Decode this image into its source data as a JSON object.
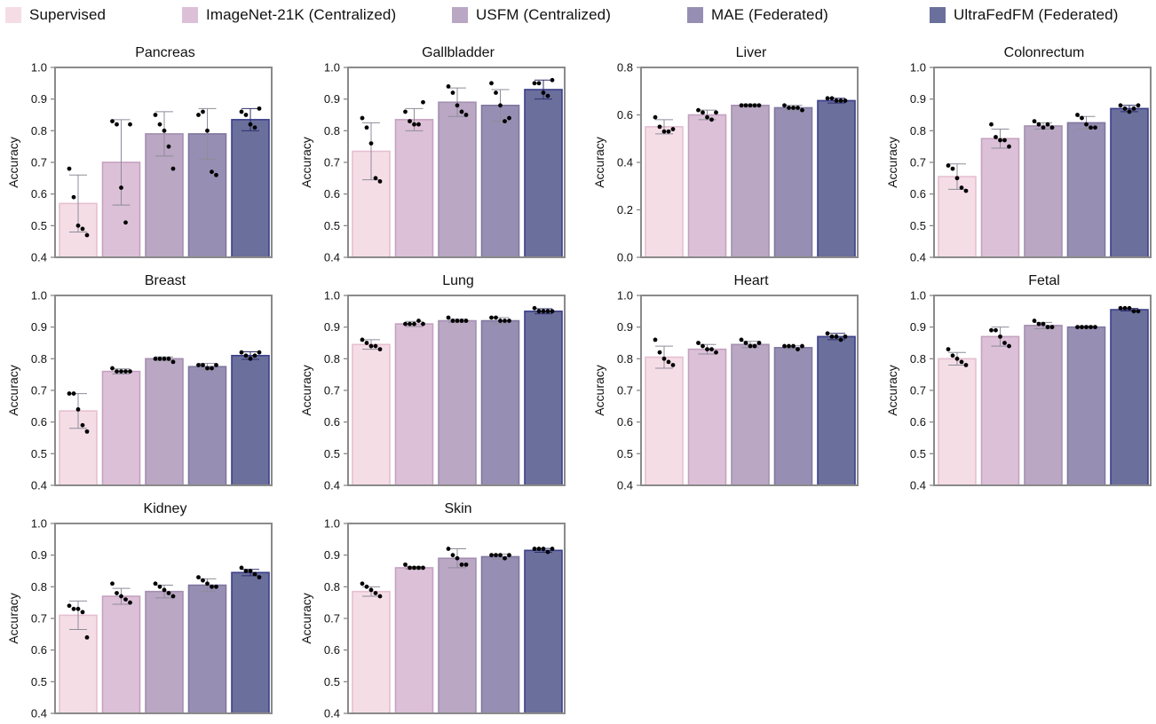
{
  "legend": [
    {
      "label": "Supervised",
      "color": "#f5dde6"
    },
    {
      "label": "ImageNet-21K (Centralized)",
      "color": "#dcc0d8"
    },
    {
      "label": "USFM (Centralized)",
      "color": "#baa7c3"
    },
    {
      "label": "MAE (Federated)",
      "color": "#978fb3"
    },
    {
      "label": "UltraFedFM (Federated)",
      "color": "#6a6f9c"
    }
  ],
  "chart_data": [
    {
      "type": "bar",
      "title": "Pancreas",
      "ylabel": "Accuracy",
      "ylim": [
        0.4,
        1.0
      ],
      "yticks": [
        "0.4",
        "0.5",
        "0.6",
        "0.7",
        "0.8",
        "0.9",
        "1.0"
      ],
      "values": [
        0.57,
        0.7,
        0.79,
        0.79,
        0.835
      ],
      "errors": [
        0.09,
        0.135,
        0.07,
        0.08,
        0.035
      ],
      "points": [
        [
          0.68,
          0.59,
          0.5,
          0.49,
          0.47
        ],
        [
          0.83,
          0.82,
          0.62,
          0.51,
          0.82
        ],
        [
          0.85,
          0.82,
          0.8,
          0.75,
          0.68
        ],
        [
          0.85,
          0.86,
          0.8,
          0.67,
          0.66
        ],
        [
          0.86,
          0.85,
          0.82,
          0.81,
          0.87
        ]
      ]
    },
    {
      "type": "bar",
      "title": "Gallbladder",
      "ylabel": "Accuracy",
      "ylim": [
        0.4,
        1.0
      ],
      "yticks": [
        "0.4",
        "0.5",
        "0.6",
        "0.7",
        "0.8",
        "0.9",
        "1.0"
      ],
      "values": [
        0.735,
        0.835,
        0.89,
        0.88,
        0.93
      ],
      "errors": [
        0.09,
        0.035,
        0.045,
        0.05,
        0.03
      ],
      "points": [
        [
          0.84,
          0.81,
          0.76,
          0.65,
          0.64
        ],
        [
          0.86,
          0.83,
          0.82,
          0.82,
          0.89
        ],
        [
          0.94,
          0.92,
          0.88,
          0.86,
          0.85
        ],
        [
          0.95,
          0.92,
          0.88,
          0.83,
          0.84
        ],
        [
          0.95,
          0.95,
          0.92,
          0.91,
          0.96
        ]
      ]
    },
    {
      "type": "bar",
      "title": "Liver",
      "ylabel": "Accuracy",
      "ylim": [
        0.0,
        0.8
      ],
      "yticks": [
        "0.0",
        "0.2",
        "0.4",
        "0.6",
        "0.8"
      ],
      "values": [
        0.55,
        0.6,
        0.64,
        0.63,
        0.66
      ],
      "errors": [
        0.03,
        0.02,
        0.006,
        0.01,
        0.01
      ],
      "points": [
        [
          0.59,
          0.55,
          0.53,
          0.53,
          0.54
        ],
        [
          0.62,
          0.61,
          0.59,
          0.58,
          0.61
        ],
        [
          0.64,
          0.64,
          0.64,
          0.64,
          0.64
        ],
        [
          0.64,
          0.63,
          0.63,
          0.63,
          0.62
        ],
        [
          0.67,
          0.67,
          0.66,
          0.66,
          0.66
        ]
      ]
    },
    {
      "type": "bar",
      "title": "Colonrectum",
      "ylabel": "Accuracy",
      "ylim": [
        0.4,
        1.0
      ],
      "yticks": [
        "0.4",
        "0.5",
        "0.6",
        "0.7",
        "0.8",
        "0.9",
        "1.0"
      ],
      "values": [
        0.655,
        0.775,
        0.815,
        0.825,
        0.87
      ],
      "errors": [
        0.04,
        0.03,
        0.01,
        0.02,
        0.01
      ],
      "points": [
        [
          0.69,
          0.68,
          0.65,
          0.62,
          0.61
        ],
        [
          0.82,
          0.78,
          0.77,
          0.77,
          0.75
        ],
        [
          0.83,
          0.82,
          0.81,
          0.82,
          0.81
        ],
        [
          0.85,
          0.84,
          0.82,
          0.81,
          0.81
        ],
        [
          0.88,
          0.87,
          0.86,
          0.87,
          0.88
        ]
      ]
    },
    {
      "type": "bar",
      "title": "Breast",
      "ylabel": "Accuracy",
      "ylim": [
        0.4,
        1.0
      ],
      "yticks": [
        "0.4",
        "0.5",
        "0.6",
        "0.7",
        "0.8",
        "0.9",
        "1.0"
      ],
      "values": [
        0.635,
        0.76,
        0.8,
        0.775,
        0.81
      ],
      "errors": [
        0.055,
        0.008,
        0.006,
        0.01,
        0.012
      ],
      "points": [
        [
          0.69,
          0.69,
          0.64,
          0.59,
          0.57
        ],
        [
          0.77,
          0.76,
          0.76,
          0.76,
          0.76
        ],
        [
          0.8,
          0.8,
          0.8,
          0.8,
          0.79
        ],
        [
          0.78,
          0.78,
          0.77,
          0.77,
          0.78
        ],
        [
          0.82,
          0.81,
          0.8,
          0.81,
          0.82
        ]
      ]
    },
    {
      "type": "bar",
      "title": "Lung",
      "ylabel": "Accuracy",
      "ylim": [
        0.4,
        1.0
      ],
      "yticks": [
        "0.4",
        "0.5",
        "0.6",
        "0.7",
        "0.8",
        "0.9",
        "1.0"
      ],
      "values": [
        0.845,
        0.91,
        0.92,
        0.92,
        0.95
      ],
      "errors": [
        0.015,
        0.008,
        0.005,
        0.01,
        0.008
      ],
      "points": [
        [
          0.86,
          0.85,
          0.84,
          0.84,
          0.83
        ],
        [
          0.91,
          0.91,
          0.91,
          0.92,
          0.91
        ],
        [
          0.93,
          0.92,
          0.92,
          0.92,
          0.92
        ],
        [
          0.93,
          0.93,
          0.92,
          0.92,
          0.92
        ],
        [
          0.96,
          0.95,
          0.95,
          0.95,
          0.95
        ]
      ]
    },
    {
      "type": "bar",
      "title": "Heart",
      "ylabel": "Accuracy",
      "ylim": [
        0.4,
        1.0
      ],
      "yticks": [
        "0.4",
        "0.5",
        "0.6",
        "0.7",
        "0.8",
        "0.9",
        "1.0"
      ],
      "values": [
        0.805,
        0.83,
        0.845,
        0.835,
        0.87
      ],
      "errors": [
        0.035,
        0.015,
        0.01,
        0.006,
        0.01
      ],
      "points": [
        [
          0.86,
          0.82,
          0.8,
          0.79,
          0.78
        ],
        [
          0.85,
          0.84,
          0.83,
          0.83,
          0.82
        ],
        [
          0.86,
          0.85,
          0.84,
          0.84,
          0.85
        ],
        [
          0.84,
          0.84,
          0.84,
          0.83,
          0.84
        ],
        [
          0.88,
          0.87,
          0.87,
          0.86,
          0.87
        ]
      ]
    },
    {
      "type": "bar",
      "title": "Fetal",
      "ylabel": "Accuracy",
      "ylim": [
        0.4,
        1.0
      ],
      "yticks": [
        "0.4",
        "0.5",
        "0.6",
        "0.7",
        "0.8",
        "0.9",
        "1.0"
      ],
      "values": [
        0.8,
        0.87,
        0.905,
        0.9,
        0.955
      ],
      "errors": [
        0.02,
        0.03,
        0.01,
        0.004,
        0.004
      ],
      "points": [
        [
          0.83,
          0.81,
          0.8,
          0.79,
          0.78
        ],
        [
          0.89,
          0.89,
          0.87,
          0.85,
          0.84
        ],
        [
          0.92,
          0.91,
          0.91,
          0.9,
          0.9
        ],
        [
          0.9,
          0.9,
          0.9,
          0.9,
          0.9
        ],
        [
          0.96,
          0.96,
          0.96,
          0.95,
          0.95
        ]
      ]
    },
    {
      "type": "bar",
      "title": "Kidney",
      "ylabel": "Accuracy",
      "ylim": [
        0.4,
        1.0
      ],
      "yticks": [
        "0.4",
        "0.5",
        "0.6",
        "0.7",
        "0.8",
        "0.9",
        "1.0"
      ],
      "values": [
        0.71,
        0.77,
        0.785,
        0.805,
        0.845
      ],
      "errors": [
        0.045,
        0.025,
        0.02,
        0.02,
        0.01
      ],
      "points": [
        [
          0.74,
          0.73,
          0.73,
          0.72,
          0.64
        ],
        [
          0.81,
          0.78,
          0.77,
          0.76,
          0.75
        ],
        [
          0.81,
          0.8,
          0.79,
          0.78,
          0.77
        ],
        [
          0.83,
          0.82,
          0.81,
          0.8,
          0.8
        ],
        [
          0.86,
          0.85,
          0.85,
          0.84,
          0.83
        ]
      ]
    },
    {
      "type": "bar",
      "title": "Skin",
      "ylabel": "Accuracy",
      "ylim": [
        0.4,
        1.0
      ],
      "yticks": [
        "0.4",
        "0.5",
        "0.6",
        "0.7",
        "0.8",
        "0.9",
        "1.0"
      ],
      "values": [
        0.785,
        0.86,
        0.89,
        0.895,
        0.915
      ],
      "errors": [
        0.015,
        0.004,
        0.03,
        0.008,
        0.006
      ],
      "points": [
        [
          0.81,
          0.8,
          0.79,
          0.78,
          0.77
        ],
        [
          0.87,
          0.86,
          0.86,
          0.86,
          0.86
        ],
        [
          0.92,
          0.9,
          0.89,
          0.87,
          0.87
        ],
        [
          0.9,
          0.9,
          0.9,
          0.89,
          0.9
        ],
        [
          0.92,
          0.92,
          0.92,
          0.91,
          0.92
        ]
      ]
    }
  ]
}
